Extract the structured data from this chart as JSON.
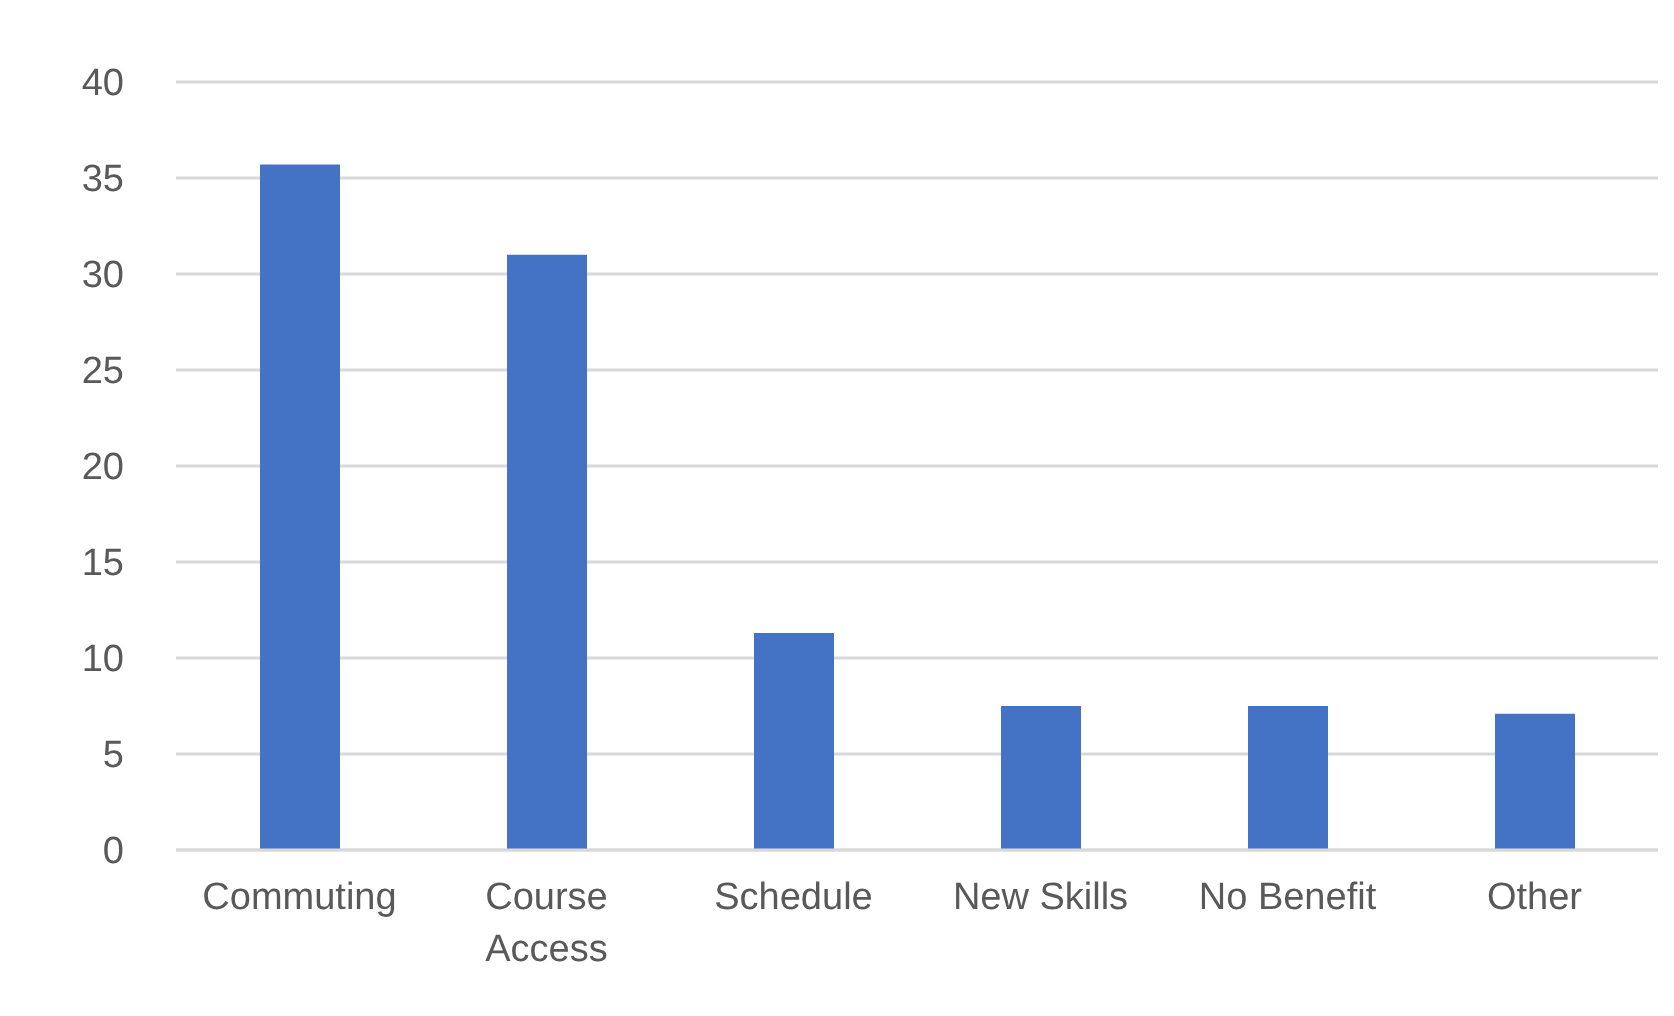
{
  "chart_data": {
    "type": "bar",
    "categories": [
      "Commuting",
      "Course Access",
      "Schedule",
      "New Skills",
      "No Benefit",
      "Other"
    ],
    "values": [
      35.7,
      31.0,
      11.3,
      7.5,
      7.5,
      7.1
    ],
    "color": "#4472c4",
    "ylim": [
      0,
      40
    ],
    "yticks": [
      0,
      5,
      10,
      15,
      20,
      25,
      30,
      35,
      40
    ],
    "grid": "y"
  }
}
